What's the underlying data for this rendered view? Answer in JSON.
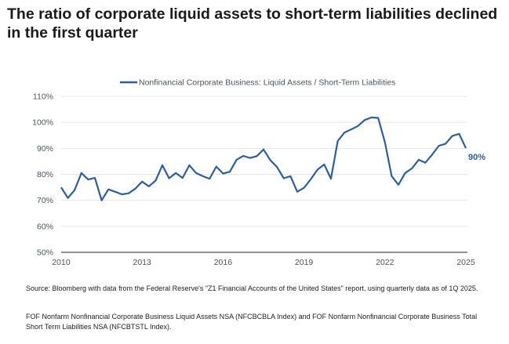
{
  "title": "The ratio of corporate liquid assets to short-term liabilities declined in the first quarter",
  "chart_data": {
    "type": "line",
    "title": "",
    "xlabel": "",
    "ylabel": "",
    "x_ticks": [
      "2010",
      "2013",
      "2016",
      "2019",
      "2022",
      "2025"
    ],
    "y_ticks": [
      "50%",
      "60%",
      "70%",
      "80%",
      "90%",
      "100%",
      "110%"
    ],
    "xlim": [
      2010,
      2025
    ],
    "ylim": [
      50,
      110
    ],
    "grid": "horizontal",
    "legend_position": "top-center",
    "line_color": "#2e5f9a",
    "end_label": "90%",
    "x": [
      "2010Q1",
      "2010Q2",
      "2010Q3",
      "2010Q4",
      "2011Q1",
      "2011Q2",
      "2011Q3",
      "2011Q4",
      "2012Q1",
      "2012Q2",
      "2012Q3",
      "2012Q4",
      "2013Q1",
      "2013Q2",
      "2013Q3",
      "2013Q4",
      "2014Q1",
      "2014Q2",
      "2014Q3",
      "2014Q4",
      "2015Q1",
      "2015Q2",
      "2015Q3",
      "2015Q4",
      "2016Q1",
      "2016Q2",
      "2016Q3",
      "2016Q4",
      "2017Q1",
      "2017Q2",
      "2017Q3",
      "2017Q4",
      "2018Q1",
      "2018Q2",
      "2018Q3",
      "2018Q4",
      "2019Q1",
      "2019Q2",
      "2019Q3",
      "2019Q4",
      "2020Q1",
      "2020Q2",
      "2020Q3",
      "2020Q4",
      "2021Q1",
      "2021Q2",
      "2021Q3",
      "2021Q4",
      "2022Q1",
      "2022Q2",
      "2022Q3",
      "2022Q4",
      "2023Q1",
      "2023Q2",
      "2023Q3",
      "2023Q4",
      "2024Q1",
      "2024Q2",
      "2024Q3",
      "2024Q4",
      "2025Q1"
    ],
    "series": [
      {
        "name": "Nonfinancial Corporate Business: Liquid Assets / Short-Term Liabilities",
        "values": [
          75.0,
          70.9,
          74.0,
          80.5,
          78.0,
          78.6,
          70.0,
          74.2,
          73.3,
          72.3,
          72.7,
          74.5,
          77.2,
          75.4,
          77.6,
          83.5,
          78.5,
          80.5,
          78.6,
          83.5,
          80.5,
          79.3,
          78.3,
          83.0,
          80.3,
          81.0,
          85.6,
          87.1,
          86.3,
          87.0,
          89.6,
          85.5,
          82.8,
          78.5,
          79.3,
          73.3,
          74.8,
          78.1,
          81.8,
          83.8,
          78.3,
          92.8,
          96.1,
          97.3,
          98.6,
          100.9,
          101.9,
          101.7,
          92.3,
          79.3,
          76.0,
          80.5,
          82.3,
          85.6,
          84.5,
          87.6,
          91.0,
          91.8,
          94.8,
          95.6,
          90.1
        ]
      }
    ]
  },
  "notes": {
    "source": "Source: Bloomberg with data from the Federal Reserve's \"Z1 Financial Accounts of the United States\" report, using quarterly data as of 1Q 2025.",
    "series_definition": "FOF Nonfarm Nonfinancial Corporate Business Liquid Assets NSA (NFCBCBLA Index) and FOF Nonfarm Nonfinancial Corporate Business Total Short Term Liabilities NSA (NFCBTSTL Index)."
  }
}
